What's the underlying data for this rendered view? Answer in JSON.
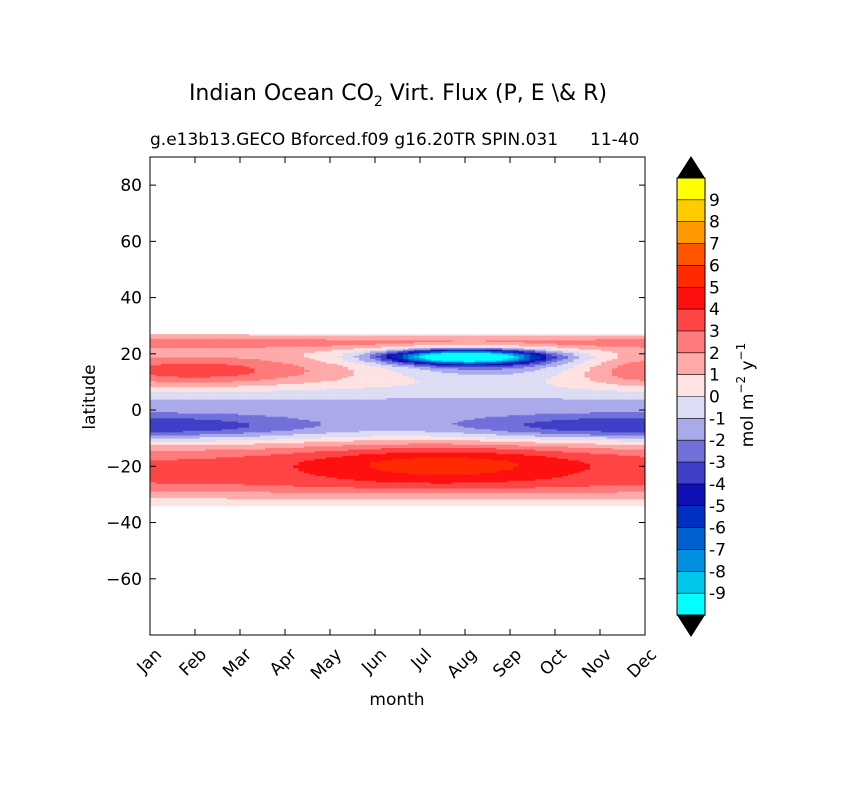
{
  "chart_data": {
    "type": "heatmap",
    "title_main": "Indian Ocean CO",
    "title_sub": "2",
    "title_rest": " Virt. Flux (P, E \\& R)",
    "subtitle_left": "g.e13b13.GECO Bforced.f09 g16.20TR SPIN.031",
    "subtitle_right": "11-40",
    "xlabel": "month",
    "ylabel": "latitude",
    "x_categories": [
      "Jan",
      "Feb",
      "Mar",
      "Apr",
      "May",
      "Jun",
      "Jul",
      "Aug",
      "Sep",
      "Oct",
      "Nov",
      "Dec"
    ],
    "ylim": [
      -80,
      90
    ],
    "y_ticks": [
      80,
      60,
      40,
      20,
      0,
      -20,
      -40,
      -60
    ],
    "y_tick_labels": [
      "80",
      "60",
      "40",
      "20",
      "0",
      "−20",
      "−40",
      "−60"
    ],
    "data_lat_range": [
      -34,
      27
    ],
    "colorbar": {
      "label_main": "mol m",
      "label_exp1": "−2",
      "label_mid": " y",
      "label_exp2": "−1",
      "levels": [
        "9",
        "8",
        "7",
        "6",
        "5",
        "4",
        "3",
        "2",
        "1",
        "0",
        "-1",
        "-2",
        "-3",
        "-4",
        "-5",
        "-6",
        "-7",
        "-8",
        "-9"
      ],
      "colors_top_to_bottom": [
        "#ffff00",
        "#ffcc00",
        "#ff9900",
        "#ff5500",
        "#ff2a00",
        "#ff1010",
        "#ff4545",
        "#ff7a7a",
        "#ffaaaa",
        "#ffe2e2",
        "#dcdcf5",
        "#aaaaea",
        "#7070d8",
        "#3f3fc8",
        "#1010b4",
        "#0030c0",
        "#0060d0",
        "#0090e0",
        "#00c8ec",
        "#00ffff"
      ],
      "extend_color": "#000000"
    },
    "fields": [
      {
        "name": "southern-subtropical-positive",
        "lat_range": [
          -30,
          -10
        ],
        "peak_value": 5,
        "peak_lat": -18,
        "peak_month": "Jul"
      },
      {
        "name": "equatorial-negative",
        "lat_range": [
          -12,
          0
        ],
        "peak_value": -4,
        "peak_month": "Jan"
      },
      {
        "name": "northern-arabian-negative",
        "lat_range": [
          14,
          24
        ],
        "peak_value": -9,
        "peak_month": "Aug"
      },
      {
        "name": "northern-positive",
        "lat_range": [
          5,
          27
        ],
        "peak_value": 4,
        "peak_month": "Feb"
      }
    ]
  }
}
